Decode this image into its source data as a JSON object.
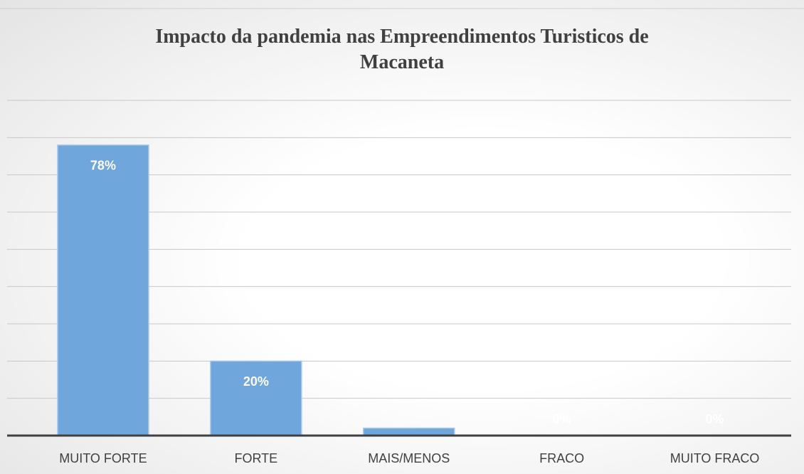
{
  "chart_data": {
    "type": "bar",
    "title": "Impacto da pandemia nas Empreendimentos Turisticos de Macaneta",
    "categories": [
      "MUITO FORTE",
      "FORTE",
      "MAIS/MENOS",
      "FRACO",
      "MUITO FRACO"
    ],
    "values": [
      78,
      20,
      2,
      0,
      0
    ],
    "value_labels": [
      "78%",
      "20%",
      null,
      "0%",
      "0%"
    ],
    "color": "#6fa6db",
    "ylim": [
      0,
      90
    ],
    "yticks": [
      0,
      10,
      20,
      30,
      40,
      50,
      60,
      70,
      80,
      90
    ],
    "grid": true
  }
}
